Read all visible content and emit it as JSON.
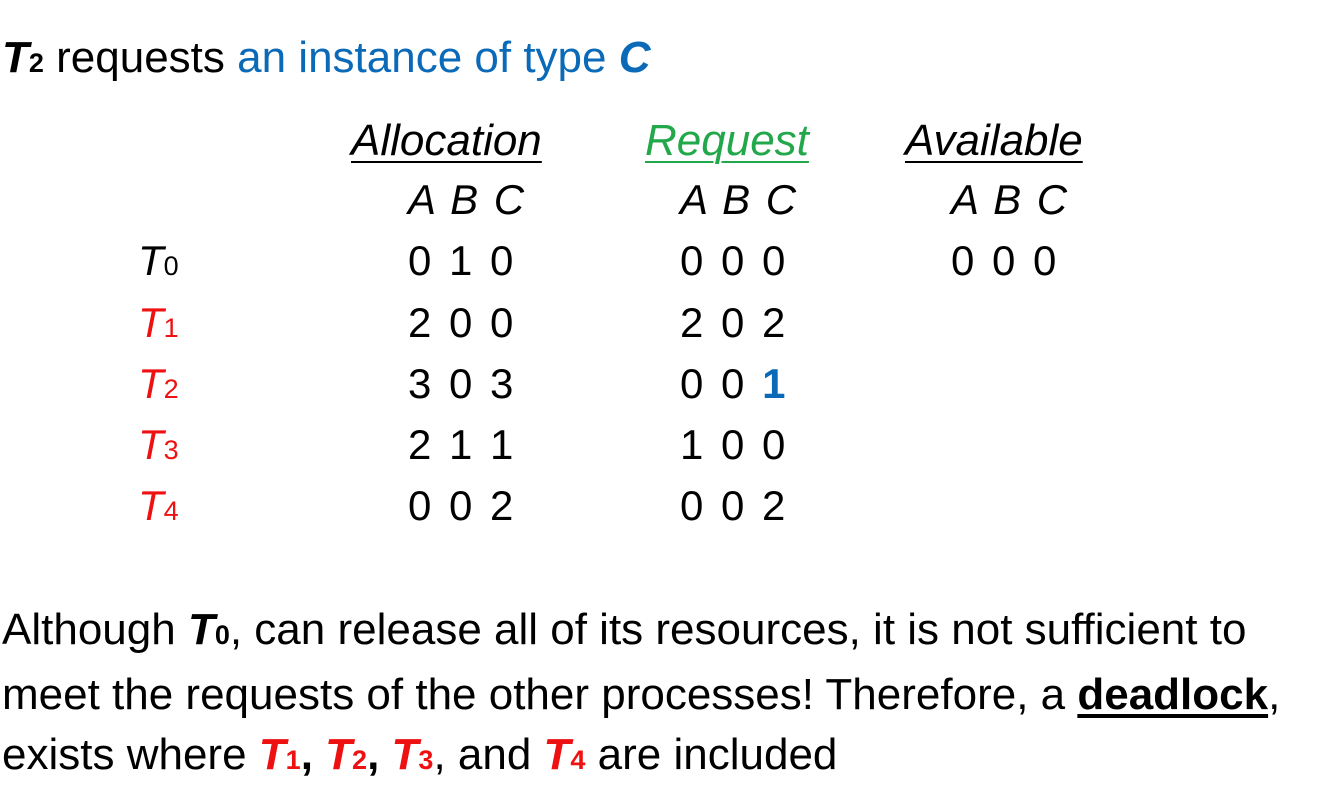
{
  "title": {
    "proc_main": "T",
    "proc_sub": "2",
    "verb": " requests ",
    "phrase": "an instance of type ",
    "resource": "C"
  },
  "headers": {
    "allocation": "Allocation",
    "request": "Request",
    "available": "Available"
  },
  "columns_label": "A B C",
  "rows": [
    {
      "proc_main": "T",
      "proc_sub": "0",
      "allocation": "0 1 0",
      "request": "0 0 0",
      "available": "0 0 0"
    },
    {
      "proc_main": "T",
      "proc_sub": "1",
      "allocation": "2 0 0",
      "request": "2 0 2",
      "available": ""
    },
    {
      "proc_main": "T",
      "proc_sub": "2",
      "allocation": "3 0 3",
      "request_prefix": "0 0 ",
      "request_highlight": "1",
      "available": ""
    },
    {
      "proc_main": "T",
      "proc_sub": "3",
      "allocation": "2 1 1",
      "request": "1 0 0",
      "available": ""
    },
    {
      "proc_main": "T",
      "proc_sub": "4",
      "allocation": "0 0 2",
      "request": "0 0 2",
      "available": ""
    }
  ],
  "paragraph": {
    "p1": "Although ",
    "t0_main": "T",
    "t0_sub": "0",
    "p2": ", can release all of its resources, it is not sufficient to meet the requests of the other processes! Therefore, a ",
    "keyword": "deadlock",
    "p3": ", exists where ",
    "t1_main": "T",
    "t1_sub": "1",
    "sep1": ", ",
    "t2_main": "T",
    "t2_sub": "2",
    "sep2": ", ",
    "t3_main": "T",
    "t3_sub": "3",
    "p4": ", and ",
    "t4_main": "T",
    "t4_sub": "4",
    "p5": " are included"
  },
  "colors": {
    "blue": "#0a6ab8",
    "green": "#22a84a",
    "red": "#ee1111",
    "text": "#000000"
  }
}
